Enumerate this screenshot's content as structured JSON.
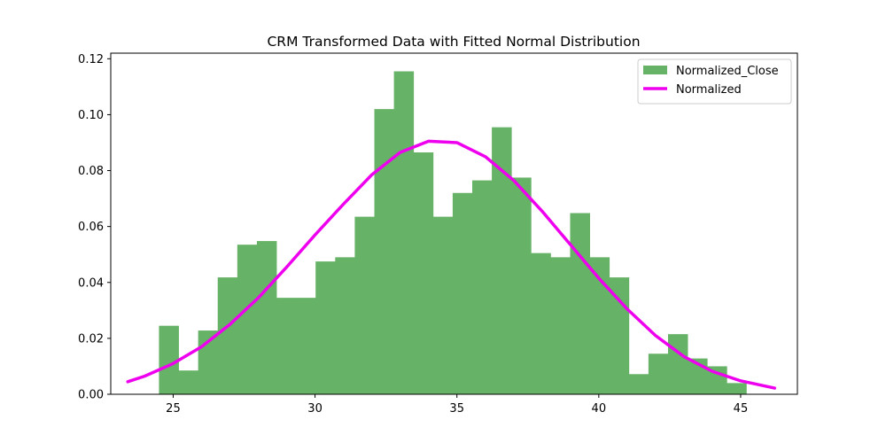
{
  "chart_data": {
    "type": "bar",
    "title": "CRM Transformed Data with Fitted Normal Distribution",
    "xlabel": "",
    "ylabel": "",
    "xlim": [
      22.8,
      47.0
    ],
    "ylim": [
      0,
      0.122
    ],
    "x_ticks": [
      {
        "value": 25,
        "label": "25"
      },
      {
        "value": 30,
        "label": "30"
      },
      {
        "value": 35,
        "label": "35"
      },
      {
        "value": 40,
        "label": "40"
      },
      {
        "value": 45,
        "label": "45"
      }
    ],
    "y_ticks": [
      {
        "value": 0,
        "label": "0.00"
      },
      {
        "value": 0.02,
        "label": "0.02"
      },
      {
        "value": 0.04,
        "label": "0.04"
      },
      {
        "value": 0.06,
        "label": "0.06"
      },
      {
        "value": 0.08,
        "label": "0.08"
      },
      {
        "value": 0.1,
        "label": "0.10"
      },
      {
        "value": 0.12,
        "label": "0.12"
      }
    ],
    "histogram": {
      "name": "Normalized_Close",
      "color": "#66b266",
      "bin_start": 24.5,
      "bin_width": 0.69,
      "values": [
        0.0245,
        0.0085,
        0.0228,
        0.0418,
        0.0535,
        0.0548,
        0.0345,
        0.0345,
        0.0475,
        0.049,
        0.0635,
        0.102,
        0.1155,
        0.0865,
        0.0635,
        0.072,
        0.0765,
        0.0955,
        0.0775,
        0.0505,
        0.049,
        0.0648,
        0.049,
        0.0418,
        0.0072,
        0.0145,
        0.0215,
        0.0128,
        0.01,
        0.004
      ]
    },
    "series": [
      {
        "name": "Normalized",
        "type": "line",
        "color": "#ee00ee",
        "x": [
          23.4,
          24.0,
          25.0,
          26.0,
          27.0,
          28.0,
          29.0,
          30.0,
          31.0,
          32.0,
          33.0,
          34.0,
          35.0,
          36.0,
          37.0,
          38.0,
          39.0,
          40.0,
          41.0,
          42.0,
          43.0,
          44.0,
          45.0,
          46.2
        ],
        "y": [
          0.0045,
          0.0065,
          0.011,
          0.017,
          0.025,
          0.0345,
          0.0455,
          0.057,
          0.068,
          0.0785,
          0.0865,
          0.0905,
          0.09,
          0.085,
          0.0765,
          0.0655,
          0.0535,
          0.0415,
          0.0305,
          0.021,
          0.0135,
          0.0082,
          0.0048,
          0.0022
        ]
      }
    ],
    "legend": {
      "position": "top-right",
      "entries": [
        {
          "label": "Normalized_Close",
          "kind": "patch",
          "color": "#66b266"
        },
        {
          "label": "Normalized",
          "kind": "line",
          "color": "#ee00ee"
        }
      ]
    },
    "grid": false
  }
}
